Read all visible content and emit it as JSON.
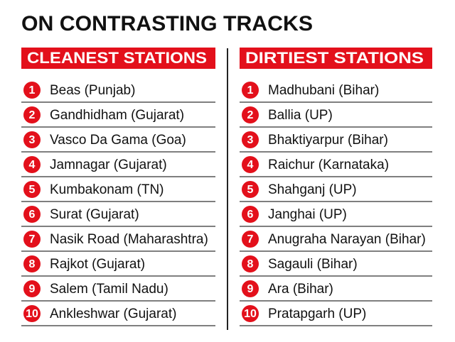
{
  "title": "ON CONTRASTING TRACKS",
  "lists": [
    {
      "header": "CLEANEST STATIONS",
      "items": [
        {
          "rank": 1,
          "name": "Beas (Punjab)"
        },
        {
          "rank": 2,
          "name": "Gandhidham (Gujarat)"
        },
        {
          "rank": 3,
          "name": "Vasco Da Gama (Goa)"
        },
        {
          "rank": 4,
          "name": "Jamnagar (Gujarat)"
        },
        {
          "rank": 5,
          "name": "Kumbakonam (TN)"
        },
        {
          "rank": 6,
          "name": "Surat (Gujarat)"
        },
        {
          "rank": 7,
          "name": "Nasik Road (Maharashtra)"
        },
        {
          "rank": 8,
          "name": "Rajkot (Gujarat)"
        },
        {
          "rank": 9,
          "name": "Salem (Tamil Nadu)"
        },
        {
          "rank": 10,
          "name": "Ankleshwar (Gujarat)"
        }
      ]
    },
    {
      "header": "DIRTIEST STATIONS",
      "items": [
        {
          "rank": 1,
          "name": "Madhubani (Bihar)"
        },
        {
          "rank": 2,
          "name": "Ballia (UP)"
        },
        {
          "rank": 3,
          "name": "Bhaktiyarpur (Bihar)"
        },
        {
          "rank": 4,
          "name": "Raichur (Karnataka)"
        },
        {
          "rank": 5,
          "name": "Shahganj (UP)"
        },
        {
          "rank": 6,
          "name": "Janghai (UP)"
        },
        {
          "rank": 7,
          "name": "Anugraha Narayan (Bihar)"
        },
        {
          "rank": 8,
          "name": "Sagauli (Bihar)"
        },
        {
          "rank": 9,
          "name": "Ara (Bihar)"
        },
        {
          "rank": 10,
          "name": "Pratapgarh (UP)"
        }
      ]
    }
  ]
}
